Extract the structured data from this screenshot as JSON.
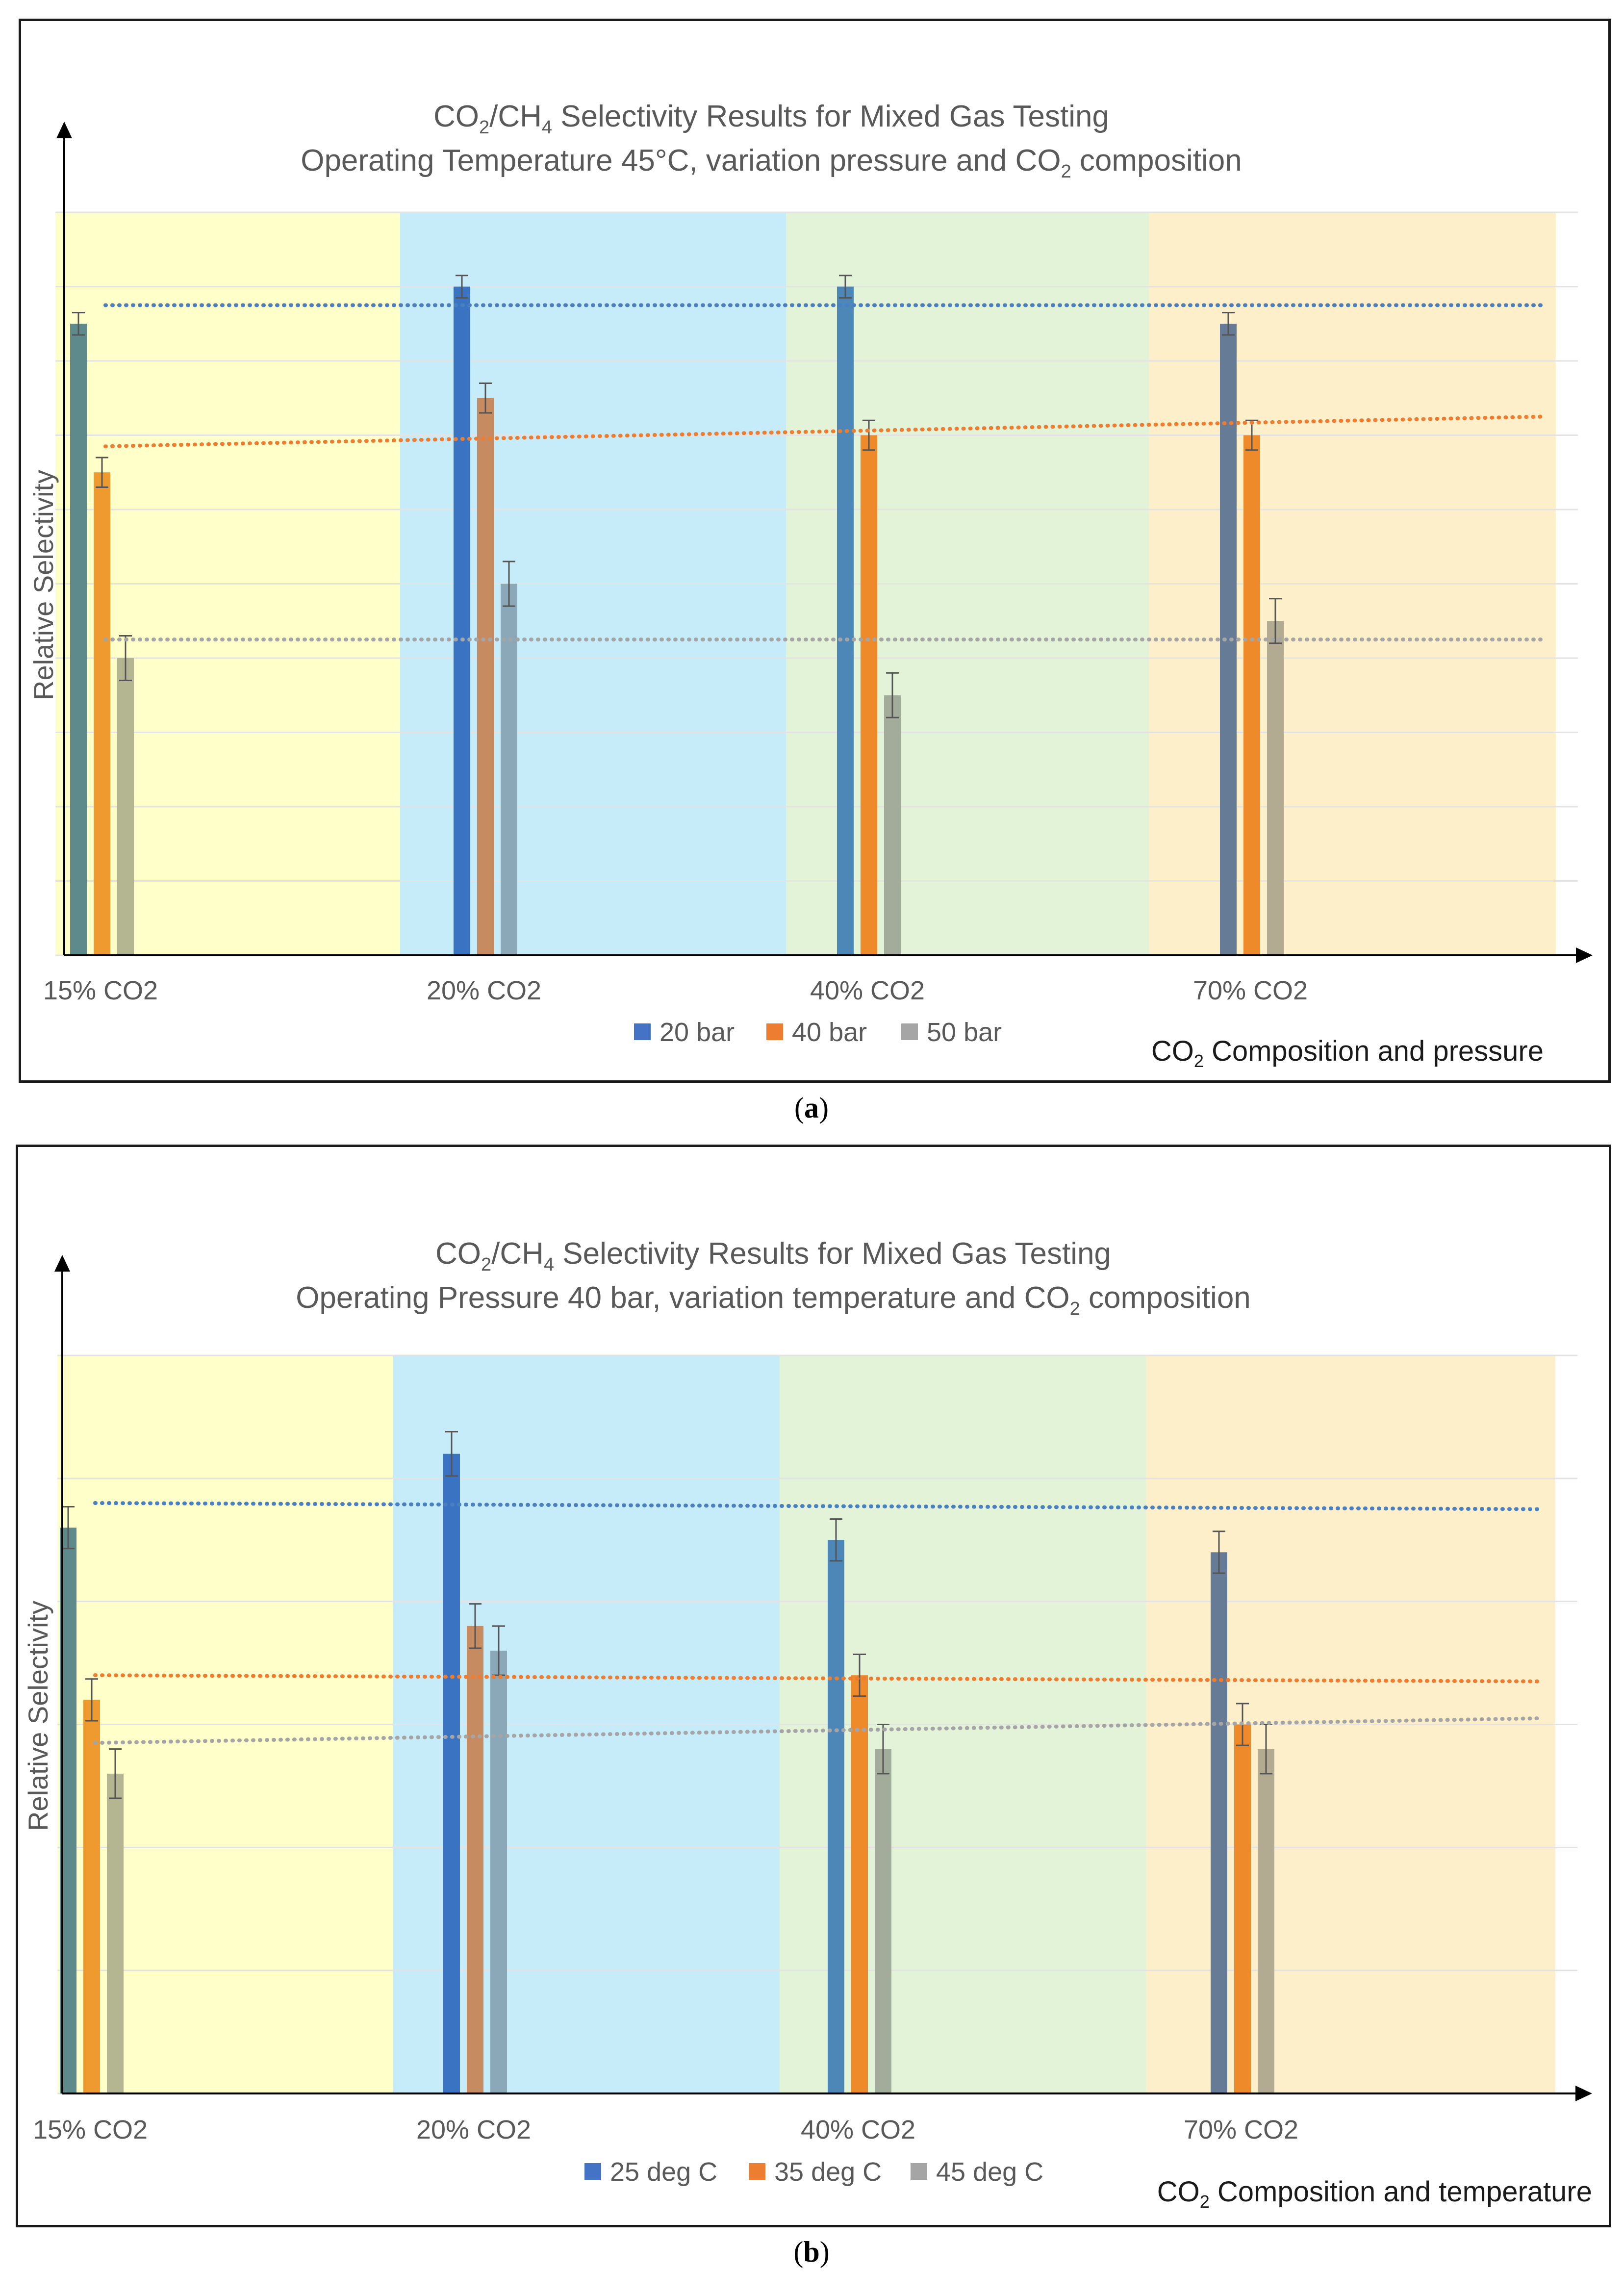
{
  "captions": {
    "a": "a",
    "b": "b"
  },
  "chart_data": [
    {
      "id": "a",
      "type": "bar",
      "title": {
        "line1": "CO₂/CH₄ Selectivity Results for Mixed Gas Testing",
        "line2": "Operating Temperature 45°C, variation pressure and CO₂ composition"
      },
      "title_parts": {
        "line1": [
          "CO",
          "2",
          "/CH",
          "4",
          " Selectivity Results for Mixed Gas Testing"
        ],
        "line2": [
          "Operating Temperature 45°C, variation pressure and CO",
          "2",
          " composition"
        ]
      },
      "ylabel": "Relative Selectivity",
      "xlabel": "CO₂ Composition and pressure",
      "xlabel_parts": [
        "CO",
        "2",
        " Composition and pressure"
      ],
      "categories": [
        "15% CO2",
        "20% CO2",
        "40% CO2",
        "70% CO2"
      ],
      "background_colors": [
        "#ffffc9",
        "#c6ebf9",
        "#e3f3d8",
        "#fcefc9"
      ],
      "ylim": [
        0,
        10
      ],
      "gridlines": 10,
      "series": [
        {
          "name": "20 bar",
          "color": "#4472c4",
          "bar_colors": [
            "#5f8a8b",
            "#3a73c2",
            "#4c87b8",
            "#667b96"
          ],
          "values": [
            8.5,
            9.0,
            9.0,
            8.5
          ],
          "errors": [
            0.15,
            0.15,
            0.15,
            0.15
          ]
        },
        {
          "name": "40 bar",
          "color": "#ed7d31",
          "bar_colors": [
            "#ef9a2e",
            "#c68b61",
            "#ee8a2a",
            "#ee8a2a"
          ],
          "values": [
            6.5,
            7.5,
            7.0,
            7.0
          ],
          "errors": [
            0.2,
            0.2,
            0.2,
            0.2
          ]
        },
        {
          "name": "50 bar",
          "color": "#a5a5a5",
          "bar_colors": [
            "#b3b691",
            "#8aa8b8",
            "#a3ac9b",
            "#b2aa91"
          ],
          "values": [
            4.0,
            5.0,
            3.5,
            4.5
          ],
          "errors": [
            0.3,
            0.3,
            0.3,
            0.3
          ]
        }
      ],
      "trendlines": [
        {
          "series": "20 bar",
          "color": "#4a80bf",
          "y_start": 8.75,
          "y_end": 8.75
        },
        {
          "series": "40 bar",
          "color": "#ed7d31",
          "y_start": 6.85,
          "y_end": 7.25
        },
        {
          "series": "50 bar",
          "color": "#a5a5a5",
          "y_start": 4.25,
          "y_end": 4.25
        }
      ],
      "legend_position": "bottom"
    },
    {
      "id": "b",
      "type": "bar",
      "title": {
        "line1": "CO₂/CH₄ Selectivity Results for Mixed Gas Testing",
        "line2": "Operating Pressure 40 bar, variation temperature and CO₂ composition"
      },
      "title_parts": {
        "line1": [
          "CO",
          "2",
          "/CH",
          "4",
          " Selectivity Results for Mixed Gas Testing"
        ],
        "line2": [
          "Operating Pressure 40 bar, variation temperature and CO",
          "2",
          " composition"
        ]
      },
      "ylabel": "Relative Selectivity",
      "xlabel": "CO₂ Composition and temperature",
      "xlabel_parts": [
        "CO",
        "2",
        " Composition and temperature"
      ],
      "categories": [
        "15% CO2",
        "20% CO2",
        "40% CO2",
        "70% CO2"
      ],
      "background_colors": [
        "#ffffc9",
        "#c6ebf9",
        "#e3f3d8",
        "#fcefc9"
      ],
      "ylim": [
        0,
        6
      ],
      "gridlines": 6,
      "series": [
        {
          "name": "25 deg C",
          "color": "#4472c4",
          "bar_colors": [
            "#5f8a8b",
            "#3a73c2",
            "#4c87b8",
            "#667b96"
          ],
          "values": [
            4.6,
            5.2,
            4.5,
            4.4
          ],
          "errors": [
            0.17,
            0.18,
            0.17,
            0.17
          ]
        },
        {
          "name": "35 deg C",
          "color": "#ed7d31",
          "bar_colors": [
            "#ef9a2e",
            "#c68b61",
            "#ee8a2a",
            "#ee8a2a"
          ],
          "values": [
            3.2,
            3.8,
            3.4,
            3.0
          ],
          "errors": [
            0.17,
            0.18,
            0.17,
            0.17
          ]
        },
        {
          "name": "45 deg C",
          "color": "#a5a5a5",
          "bar_colors": [
            "#b3b691",
            "#8aa8b8",
            "#a3ac9b",
            "#b2aa91"
          ],
          "values": [
            2.6,
            3.6,
            2.8,
            2.8
          ],
          "errors": [
            0.2,
            0.2,
            0.2,
            0.2
          ]
        }
      ],
      "trendlines": [
        {
          "series": "25 deg C",
          "color": "#4a80bf",
          "y_start": 4.8,
          "y_end": 4.75
        },
        {
          "series": "35 deg C",
          "color": "#ed7d31",
          "y_start": 3.4,
          "y_end": 3.35
        },
        {
          "series": "45 deg C",
          "color": "#a5a5a5",
          "y_start": 2.85,
          "y_end": 3.05
        }
      ],
      "legend_position": "bottom"
    }
  ]
}
